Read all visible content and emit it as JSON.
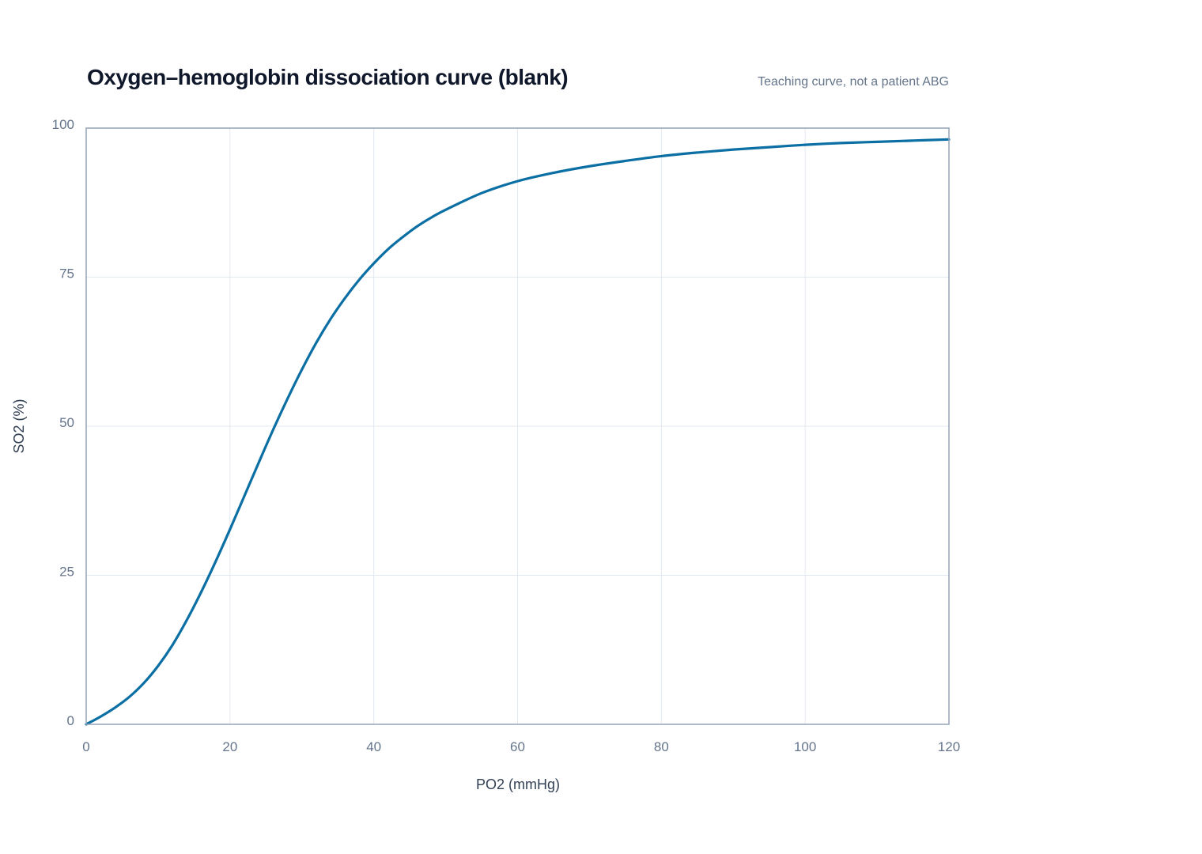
{
  "chart_data": {
    "type": "line",
    "title": "Oxygen–hemoglobin dissociation curve (blank)",
    "subtitle": "Teaching curve, not a patient ABG",
    "xlabel": "PO2 (mmHg)",
    "ylabel": "SO2 (%)",
    "xlim": [
      0,
      120
    ],
    "ylim": [
      0,
      100
    ],
    "xticks": [
      0,
      20,
      40,
      60,
      80,
      100,
      120
    ],
    "yticks": [
      0,
      25,
      50,
      75,
      100
    ],
    "grid": true,
    "legend": "none",
    "series": [
      {
        "color": "#0b6fa4",
        "x": [
          0,
          2,
          4,
          6,
          8,
          10,
          12,
          14,
          16,
          18,
          20,
          22,
          24,
          26,
          28,
          30,
          32,
          34,
          36,
          38,
          40,
          42,
          44,
          46,
          48,
          50,
          55,
          60,
          65,
          70,
          75,
          80,
          85,
          90,
          95,
          100,
          105,
          110,
          115,
          120
        ],
        "y": [
          0,
          1.3,
          2.8,
          4.6,
          6.9,
          9.8,
          13.3,
          17.5,
          22.2,
          27.3,
          32.7,
          38.3,
          43.9,
          49.4,
          54.6,
          59.5,
          64.0,
          68.0,
          71.5,
          74.6,
          77.3,
          79.7,
          81.7,
          83.5,
          85.0,
          86.3,
          89.1,
          91.1,
          92.5,
          93.6,
          94.5,
          95.3,
          95.9,
          96.4,
          96.8,
          97.2,
          97.5,
          97.7,
          97.9,
          98.1
        ]
      }
    ]
  }
}
